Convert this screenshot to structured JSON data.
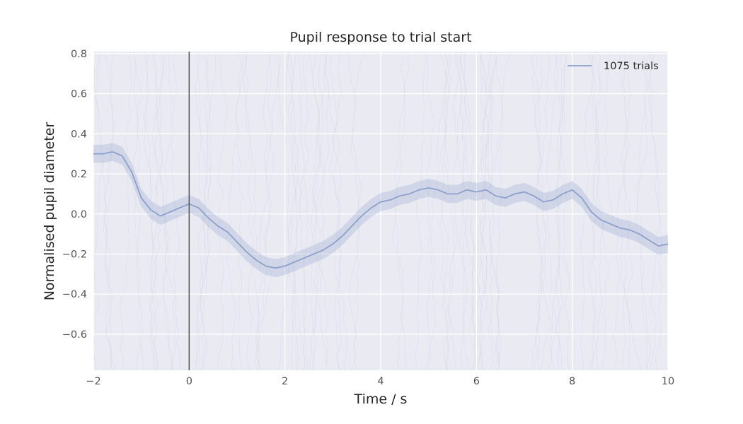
{
  "chart_data": {
    "type": "line",
    "title": "Pupil response to trial start",
    "xlabel": "Time / s",
    "ylabel": "Normalised pupil diameter",
    "xlim": [
      -2,
      10
    ],
    "ylim": [
      -0.78,
      0.81
    ],
    "xticks": [
      -2,
      0,
      2,
      4,
      6,
      8,
      10
    ],
    "yticks": [
      -0.6,
      -0.4,
      -0.2,
      0.0,
      0.2,
      0.4,
      0.6,
      0.8
    ],
    "xtick_labels": [
      "−2",
      "0",
      "2",
      "4",
      "6",
      "8",
      "10"
    ],
    "ytick_labels": [
      "−0.6",
      "−0.4",
      "−0.2",
      "0.0",
      "0.2",
      "0.4",
      "0.6",
      "0.8"
    ],
    "grid": true,
    "legend_position": "top-right",
    "vline_x": 0,
    "series": [
      {
        "name": "1075 trials",
        "x": [
          -2.0,
          -1.8,
          -1.6,
          -1.4,
          -1.2,
          -1.0,
          -0.8,
          -0.6,
          -0.4,
          -0.2,
          0.0,
          0.2,
          0.4,
          0.6,
          0.8,
          1.0,
          1.2,
          1.4,
          1.6,
          1.8,
          2.0,
          2.2,
          2.4,
          2.6,
          2.8,
          3.0,
          3.2,
          3.4,
          3.6,
          3.8,
          4.0,
          4.2,
          4.4,
          4.6,
          4.8,
          5.0,
          5.2,
          5.4,
          5.6,
          5.8,
          6.0,
          6.2,
          6.4,
          6.6,
          6.8,
          7.0,
          7.2,
          7.4,
          7.6,
          7.8,
          8.0,
          8.2,
          8.4,
          8.6,
          8.8,
          9.0,
          9.2,
          9.4,
          9.6,
          9.8,
          10.0
        ],
        "values": [
          0.3,
          0.3,
          0.31,
          0.29,
          0.21,
          0.08,
          0.02,
          -0.01,
          0.01,
          0.03,
          0.05,
          0.03,
          -0.02,
          -0.06,
          -0.09,
          -0.14,
          -0.19,
          -0.23,
          -0.26,
          -0.27,
          -0.26,
          -0.24,
          -0.22,
          -0.2,
          -0.18,
          -0.15,
          -0.11,
          -0.06,
          -0.01,
          0.03,
          0.06,
          0.07,
          0.09,
          0.1,
          0.12,
          0.13,
          0.12,
          0.1,
          0.1,
          0.12,
          0.11,
          0.12,
          0.09,
          0.08,
          0.1,
          0.11,
          0.09,
          0.06,
          0.07,
          0.1,
          0.12,
          0.08,
          0.01,
          -0.03,
          -0.05,
          -0.07,
          -0.08,
          -0.1,
          -0.13,
          -0.16,
          -0.15
        ],
        "ci_halfwidth": 0.045,
        "color": "#8da0cb"
      }
    ]
  }
}
